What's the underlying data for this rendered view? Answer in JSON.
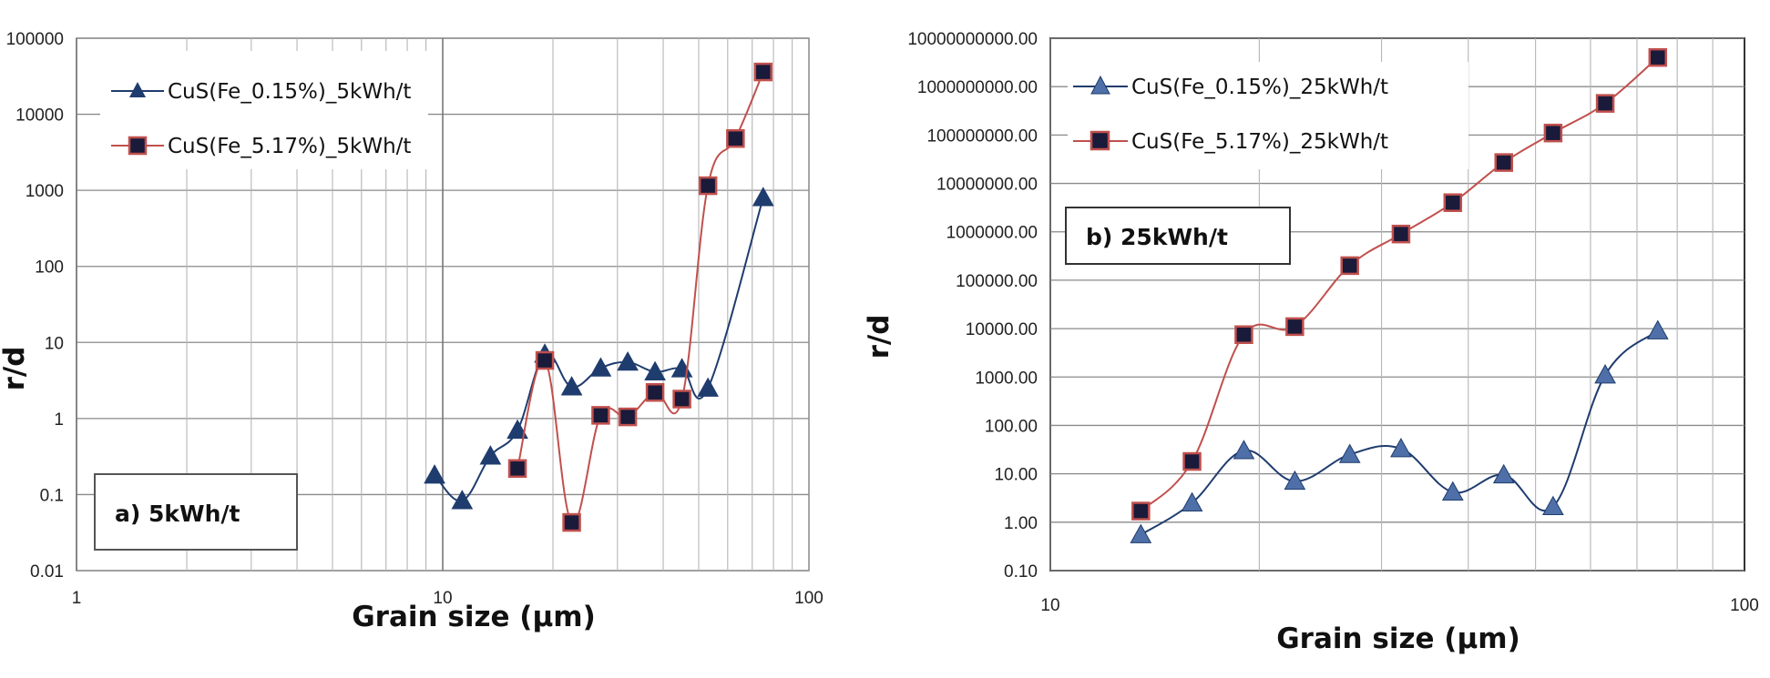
{
  "chart_data": [
    {
      "type": "line",
      "panel_label": "a) 5kWh/t",
      "xlabel": "Grain size (µm)",
      "ylabel": "r/d",
      "x_scale": "log",
      "y_scale": "log",
      "xlim": [
        1,
        100
      ],
      "ylim": [
        0.01,
        100000
      ],
      "x_ticks": [
        "1",
        "10",
        "100"
      ],
      "y_ticks": [
        "0.01",
        "0.1",
        "1",
        "10",
        "100",
        "1000",
        "10000",
        "100000"
      ],
      "grid": true,
      "legend_position": "top-left",
      "series": [
        {
          "name": "CuS(Fe_0.15%)_5kWh/t",
          "marker": "triangle",
          "color": "#1f3c6e",
          "line_color": "#1f3c6e",
          "x": [
            9.5,
            11.3,
            13.5,
            16,
            19,
            22.5,
            27,
            32,
            38,
            45,
            53,
            75
          ],
          "y": [
            0.18,
            0.083,
            0.32,
            0.7,
            7,
            2.6,
            4.6,
            5.5,
            4.1,
            4.5,
            2.5,
            800
          ]
        },
        {
          "name": "CuS(Fe_5.17%)_5kWh/t",
          "marker": "square",
          "color": "#1a1a3a",
          "line_color": "#c0504d",
          "x": [
            16,
            19,
            22.5,
            27,
            32,
            38,
            45,
            53,
            63,
            75
          ],
          "y": [
            0.22,
            5.8,
            0.043,
            1.1,
            1.05,
            2.2,
            1.8,
            1150,
            4800,
            36000
          ]
        }
      ]
    },
    {
      "type": "line",
      "panel_label": "b) 25kWh/t",
      "xlabel": "Grain size (µm)",
      "ylabel": "r/d",
      "x_scale": "log",
      "y_scale": "log",
      "xlim": [
        10,
        100
      ],
      "ylim": [
        0.1,
        10000000000
      ],
      "x_ticks": [
        "10",
        "100"
      ],
      "y_ticks": [
        "0.10",
        "1.00",
        "10.00",
        "100.00",
        "1000.00",
        "10000.00",
        "100000.00",
        "1000000.00",
        "10000000.00",
        "100000000.00",
        "1000000000.00",
        "10000000000.00"
      ],
      "grid": true,
      "legend_position": "top-left",
      "series": [
        {
          "name": "CuS(Fe_0.15%)_25kWh/t",
          "marker": "triangle",
          "color": "#4f6fa8",
          "line_color": "#1f3c6e",
          "x": [
            13.5,
            16,
            19,
            22.5,
            27,
            32,
            38,
            45,
            53,
            63,
            75
          ],
          "y": [
            0.55,
            2.5,
            30,
            7,
            25,
            33,
            4.2,
            9.5,
            2.1,
            1100,
            9000
          ]
        },
        {
          "name": "CuS(Fe_5.17%)_25kWh/t",
          "marker": "square",
          "color": "#1a1a3a",
          "line_color": "#c0504d",
          "x": [
            13.5,
            16,
            19,
            22.5,
            27,
            32,
            38,
            45,
            53,
            63,
            75
          ],
          "y": [
            1.7,
            18,
            7500,
            11000,
            200000,
            900000,
            4000000,
            27000000,
            110000000,
            450000000,
            4000000000
          ]
        }
      ]
    }
  ]
}
